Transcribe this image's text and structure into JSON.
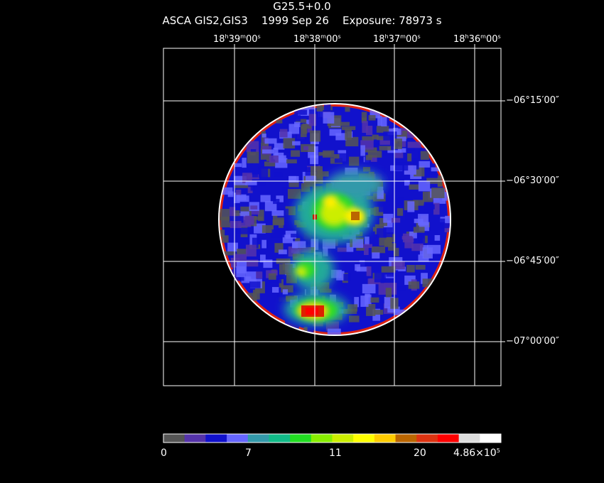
{
  "header": {
    "object_name": "G25.5+0.0",
    "instrument": "ASCA GIS2,GIS3",
    "date": "1999 Sep 26",
    "exposure": "Exposure: 78973 s"
  },
  "ra_axis": [
    {
      "h": "18",
      "m": "39",
      "s": "00"
    },
    {
      "h": "18",
      "m": "38",
      "s": "00"
    },
    {
      "h": "18",
      "m": "37",
      "s": "00"
    },
    {
      "h": "18",
      "m": "36",
      "s": "00"
    }
  ],
  "dec_axis": [
    {
      "d": "−06",
      "m": "15",
      "s": "00"
    },
    {
      "d": "−06",
      "m": "30",
      "s": "00"
    },
    {
      "d": "−06",
      "m": "45",
      "s": "00"
    },
    {
      "d": "−07",
      "m": "00",
      "s": "00"
    }
  ],
  "colorbar": {
    "colors": [
      "#555555",
      "#5533aa",
      "#1111cc",
      "#6666ff",
      "#3399aa",
      "#11bb88",
      "#22dd22",
      "#88ee00",
      "#ccee00",
      "#ffff00",
      "#ffcc00",
      "#bb6600",
      "#dd3311",
      "#ff0000",
      "#dddddd",
      "#ffffff"
    ],
    "labels": [
      "0",
      "7",
      "11",
      "20"
    ],
    "max_label_base": "4.86×10",
    "max_label_exp": "5"
  }
}
